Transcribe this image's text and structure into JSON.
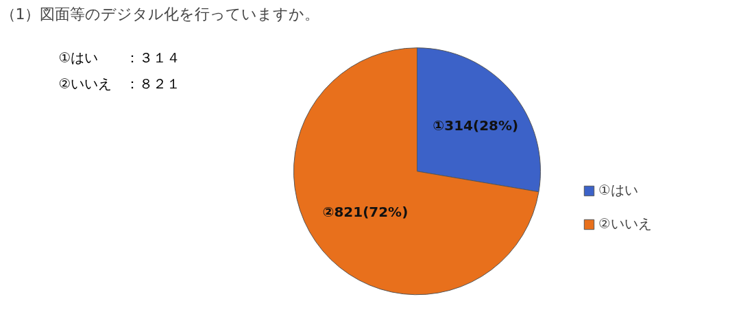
{
  "chart_data": {
    "type": "pie",
    "title": "（1）図面等のデジタル化を行っていますか。",
    "annotations": [
      "①はい　　：３１４",
      "②いいえ　：８２１"
    ],
    "categories": [
      "①はい",
      "②いいえ"
    ],
    "values": [
      314,
      821
    ],
    "colors": [
      "#3c62c8",
      "#e8701c"
    ],
    "value_labels": [
      "①314(28%)",
      "②821(72%)"
    ],
    "legend": "right"
  }
}
